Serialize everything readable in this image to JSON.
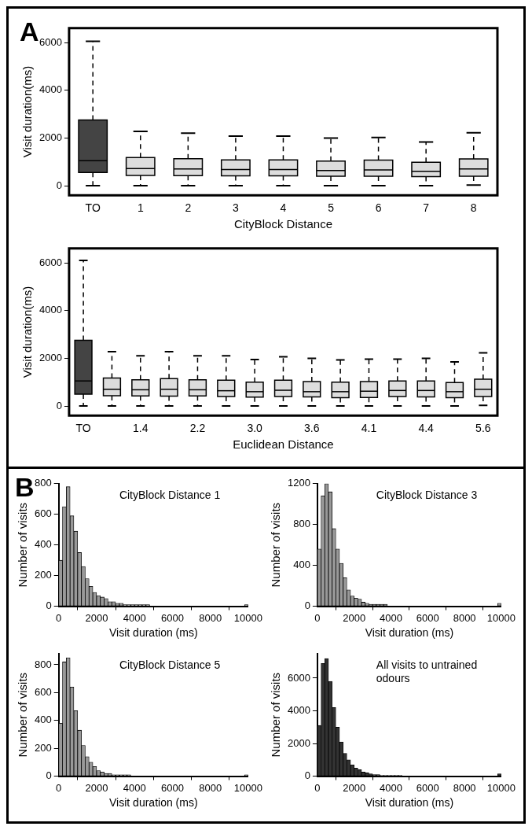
{
  "chart_data": [
    {
      "type": "box",
      "xlabel": "CityBlock Distance",
      "ylabel": "Visit duration(ms)",
      "annotations": [
        "A"
      ],
      "categories": [
        "TO",
        "1",
        "2",
        "3",
        "4",
        "5",
        "6",
        "7",
        "8"
      ],
      "colors": [
        "#444444",
        "#dddddd",
        "#dddddd",
        "#dddddd",
        "#dddddd",
        "#dddddd",
        "#dddddd",
        "#dddddd",
        "#dddddd"
      ],
      "ylim": [
        -400,
        6600
      ],
      "yticks": [
        0,
        2000,
        4000,
        6000
      ],
      "grid": false,
      "boxes": [
        {
          "low": 0,
          "q1": 550,
          "median": 1050,
          "q3": 2750,
          "high": 6050
        },
        {
          "low": 0,
          "q1": 430,
          "median": 720,
          "q3": 1180,
          "high": 2280
        },
        {
          "low": 0,
          "q1": 420,
          "median": 700,
          "q3": 1130,
          "high": 2200
        },
        {
          "low": 0,
          "q1": 410,
          "median": 680,
          "q3": 1080,
          "high": 2080
        },
        {
          "low": 0,
          "q1": 410,
          "median": 680,
          "q3": 1080,
          "high": 2080
        },
        {
          "low": 0,
          "q1": 400,
          "median": 640,
          "q3": 1030,
          "high": 2000
        },
        {
          "low": 0,
          "q1": 400,
          "median": 660,
          "q3": 1070,
          "high": 2020
        },
        {
          "low": 0,
          "q1": 380,
          "median": 600,
          "q3": 980,
          "high": 1830
        },
        {
          "low": 30,
          "q1": 400,
          "median": 700,
          "q3": 1120,
          "high": 2220
        }
      ]
    },
    {
      "type": "box",
      "xlabel": "Euclidean Distance",
      "ylabel": "Visit duration(ms)",
      "categories": [
        "TO",
        null,
        "1.4",
        null,
        "2.2",
        null,
        "3.0",
        null,
        "3.6",
        null,
        "4.1",
        null,
        "4.4",
        null,
        "5.6"
      ],
      "colors": [
        "#444444",
        "#dddddd",
        "#dddddd",
        "#dddddd",
        "#dddddd",
        "#dddddd",
        "#dddddd",
        "#dddddd",
        "#dddddd",
        "#dddddd",
        "#dddddd",
        "#dddddd",
        "#dddddd",
        "#dddddd",
        "#dddddd"
      ],
      "ylim": [
        -400,
        6600
      ],
      "yticks": [
        0,
        2000,
        4000,
        6000
      ],
      "grid": false,
      "boxes": [
        {
          "low": 0,
          "q1": 500,
          "median": 1050,
          "q3": 2750,
          "high": 6100
        },
        {
          "low": 0,
          "q1": 430,
          "median": 700,
          "q3": 1170,
          "high": 2280
        },
        {
          "low": 0,
          "q1": 420,
          "median": 680,
          "q3": 1100,
          "high": 2100
        },
        {
          "low": 0,
          "q1": 410,
          "median": 700,
          "q3": 1150,
          "high": 2280
        },
        {
          "low": 0,
          "q1": 420,
          "median": 680,
          "q3": 1100,
          "high": 2100
        },
        {
          "low": 0,
          "q1": 400,
          "median": 640,
          "q3": 1080,
          "high": 2100
        },
        {
          "low": 0,
          "q1": 370,
          "median": 600,
          "q3": 1000,
          "high": 1950
        },
        {
          "low": 0,
          "q1": 400,
          "median": 660,
          "q3": 1080,
          "high": 2060
        },
        {
          "low": 0,
          "q1": 380,
          "median": 600,
          "q3": 1020,
          "high": 2000
        },
        {
          "low": 0,
          "q1": 350,
          "median": 600,
          "q3": 1000,
          "high": 1930
        },
        {
          "low": 0,
          "q1": 360,
          "median": 620,
          "q3": 1020,
          "high": 1960
        },
        {
          "low": 0,
          "q1": 400,
          "median": 650,
          "q3": 1050,
          "high": 1960
        },
        {
          "low": 0,
          "q1": 380,
          "median": 650,
          "q3": 1050,
          "high": 2000
        },
        {
          "low": 0,
          "q1": 350,
          "median": 600,
          "q3": 980,
          "high": 1850
        },
        {
          "low": 30,
          "q1": 400,
          "median": 700,
          "q3": 1120,
          "high": 2230
        }
      ]
    },
    {
      "type": "histogram",
      "title": "CityBlock Distance 1",
      "xlabel": "Visit duration (ms)",
      "ylabel": "Number of visits",
      "annotations": [
        "B"
      ],
      "color": "#999999",
      "xlim": [
        0,
        10000
      ],
      "xticks": [
        0,
        2000,
        4000,
        6000,
        8000,
        10000
      ],
      "ylim": [
        0,
        800
      ],
      "yticks": [
        0,
        200,
        400,
        600,
        800
      ],
      "grid": false,
      "bins": [
        0,
        200,
        400,
        600,
        800,
        1000,
        1200,
        1400,
        1600,
        1800,
        2000,
        2200,
        2400,
        2600,
        2800,
        3000,
        3200,
        3400,
        3600,
        3800,
        4000,
        4200,
        4400,
        4600,
        4800,
        5000,
        5200,
        5400,
        5600,
        5800,
        6000,
        6200,
        6400,
        6600,
        6800,
        7000,
        7200,
        7400,
        7600,
        7800,
        8000,
        8200,
        8400,
        8600,
        8800,
        9000,
        9200,
        9400,
        9600,
        9800,
        10000
      ],
      "values": [
        300,
        650,
        780,
        590,
        490,
        350,
        260,
        180,
        130,
        90,
        70,
        60,
        50,
        30,
        30,
        20,
        20,
        10,
        10,
        10,
        10,
        10,
        10,
        10,
        0,
        0,
        0,
        0,
        0,
        0,
        0,
        0,
        0,
        0,
        0,
        0,
        0,
        0,
        0,
        0,
        0,
        0,
        0,
        0,
        0,
        0,
        0,
        0,
        0,
        10
      ]
    },
    {
      "type": "histogram",
      "title": "CityBlock Distance 3",
      "xlabel": "Visit duration (ms)",
      "ylabel": "Number of visits",
      "color": "#999999",
      "xlim": [
        0,
        10000
      ],
      "xticks": [
        0,
        2000,
        4000,
        6000,
        8000,
        10000
      ],
      "ylim": [
        0,
        1200
      ],
      "yticks": [
        0,
        400,
        800,
        1200
      ],
      "grid": false,
      "bins": [
        0,
        200,
        400,
        600,
        800,
        1000,
        1200,
        1400,
        1600,
        1800,
        2000,
        2200,
        2400,
        2600,
        2800,
        3000,
        3200,
        3400,
        3600,
        3800,
        4000,
        4200,
        4400,
        4600,
        4800,
        5000,
        5200,
        5400,
        5600,
        5800,
        6000,
        6200,
        6400,
        6600,
        6800,
        7000,
        7200,
        7400,
        7600,
        7800,
        8000,
        8200,
        8400,
        8600,
        8800,
        9000,
        9200,
        9400,
        9600,
        9800,
        10000
      ],
      "values": [
        560,
        1080,
        1200,
        1120,
        760,
        560,
        420,
        280,
        160,
        100,
        80,
        70,
        40,
        30,
        20,
        20,
        20,
        20,
        20,
        0,
        0,
        0,
        0,
        0,
        0,
        0,
        0,
        0,
        0,
        0,
        0,
        0,
        0,
        0,
        0,
        0,
        0,
        0,
        0,
        0,
        0,
        0,
        0,
        0,
        0,
        0,
        0,
        0,
        0,
        30
      ]
    },
    {
      "type": "histogram",
      "title": "CityBlock Distance 5",
      "xlabel": "Visit duration (ms)",
      "ylabel": "Number of visits",
      "color": "#999999",
      "xlim": [
        0,
        10000
      ],
      "xticks": [
        0,
        2000,
        4000,
        6000,
        8000,
        10000
      ],
      "ylim": [
        0,
        880
      ],
      "yticks": [
        0,
        200,
        400,
        600,
        800
      ],
      "grid": false,
      "bins": [
        0,
        200,
        400,
        600,
        800,
        1000,
        1200,
        1400,
        1600,
        1800,
        2000,
        2200,
        2400,
        2600,
        2800,
        3000,
        3200,
        3400,
        3600,
        3800,
        4000,
        4200,
        4400,
        4600,
        4800,
        5000,
        5200,
        5400,
        5600,
        5800,
        6000,
        6200,
        6400,
        6600,
        6800,
        7000,
        7200,
        7400,
        7600,
        7800,
        8000,
        8200,
        8400,
        8600,
        8800,
        9000,
        9200,
        9400,
        9600,
        9800,
        10000
      ],
      "values": [
        380,
        820,
        850,
        640,
        470,
        330,
        220,
        140,
        100,
        70,
        40,
        30,
        20,
        20,
        10,
        10,
        10,
        10,
        10,
        0,
        0,
        0,
        0,
        0,
        0,
        0,
        0,
        0,
        0,
        0,
        0,
        0,
        0,
        0,
        0,
        0,
        0,
        0,
        0,
        0,
        0,
        0,
        0,
        0,
        0,
        0,
        0,
        0,
        0,
        10
      ]
    },
    {
      "type": "histogram",
      "title": "All visits to untrained odours",
      "xlabel": "Visit duration (ms)",
      "ylabel": "Number of visits",
      "color": "#333333",
      "xlim": [
        0,
        10000
      ],
      "xticks": [
        0,
        2000,
        4000,
        6000,
        8000,
        10000
      ],
      "ylim": [
        0,
        7500
      ],
      "yticks": [
        0,
        2000,
        4000,
        6000
      ],
      "grid": false,
      "bins": [
        0,
        200,
        400,
        600,
        800,
        1000,
        1200,
        1400,
        1600,
        1800,
        2000,
        2200,
        2400,
        2600,
        2800,
        3000,
        3200,
        3400,
        3600,
        3800,
        4000,
        4200,
        4400,
        4600,
        4800,
        5000,
        5200,
        5400,
        5600,
        5800,
        6000,
        6200,
        6400,
        6600,
        6800,
        7000,
        7200,
        7400,
        7600,
        7800,
        8000,
        8200,
        8400,
        8600,
        8800,
        9000,
        9200,
        9400,
        9600,
        9800,
        10000
      ],
      "values": [
        3100,
        6900,
        7200,
        5800,
        4200,
        3000,
        2100,
        1400,
        1000,
        700,
        500,
        400,
        250,
        200,
        150,
        100,
        100,
        50,
        50,
        50,
        50,
        50,
        50,
        0,
        0,
        0,
        0,
        0,
        0,
        0,
        0,
        0,
        0,
        0,
        0,
        0,
        0,
        0,
        0,
        0,
        0,
        0,
        0,
        0,
        0,
        0,
        0,
        0,
        0,
        150
      ]
    }
  ]
}
